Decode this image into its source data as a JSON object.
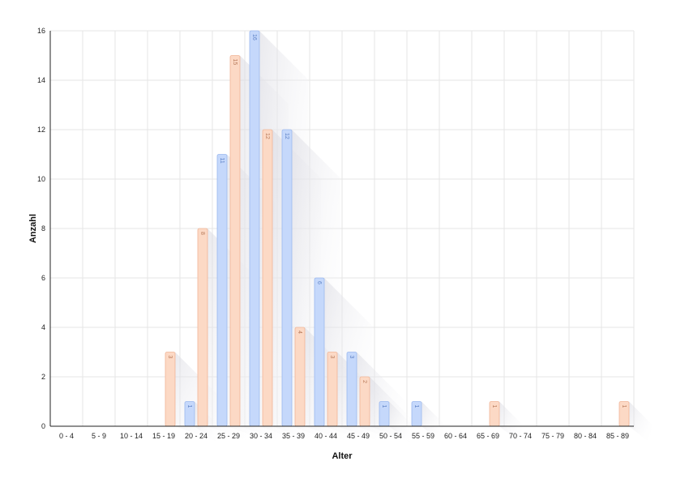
{
  "chart_data": {
    "type": "bar",
    "xlabel": "Alter",
    "ylabel": "Anzahl",
    "ylim": [
      0,
      16
    ],
    "yticks": [
      0,
      2,
      4,
      6,
      8,
      10,
      12,
      14,
      16
    ],
    "categories": [
      "0 - 4",
      "5 - 9",
      "10 - 14",
      "15 - 19",
      "20 - 24",
      "25 - 29",
      "30 - 34",
      "35 - 39",
      "40 - 44",
      "45 - 49",
      "50 - 54",
      "55 - 59",
      "60 - 64",
      "65 - 69",
      "70 - 74",
      "75 - 79",
      "80 - 84",
      "85 - 89"
    ],
    "series": [
      {
        "color": "#c5d8fb",
        "border": "#9bb8ee",
        "label_color": "#5a7fc4",
        "values": [
          0,
          0,
          0,
          0,
          1,
          11,
          16,
          12,
          6,
          3,
          1,
          1,
          0,
          0,
          0,
          0,
          0,
          0
        ]
      },
      {
        "color": "#fcd9c5",
        "border": "#f0b597",
        "label_color": "#b87a5a",
        "values": [
          0,
          0,
          0,
          3,
          8,
          15,
          12,
          4,
          3,
          2,
          0,
          0,
          0,
          1,
          0,
          0,
          0,
          1
        ]
      }
    ],
    "grid": true,
    "legend": "none"
  }
}
